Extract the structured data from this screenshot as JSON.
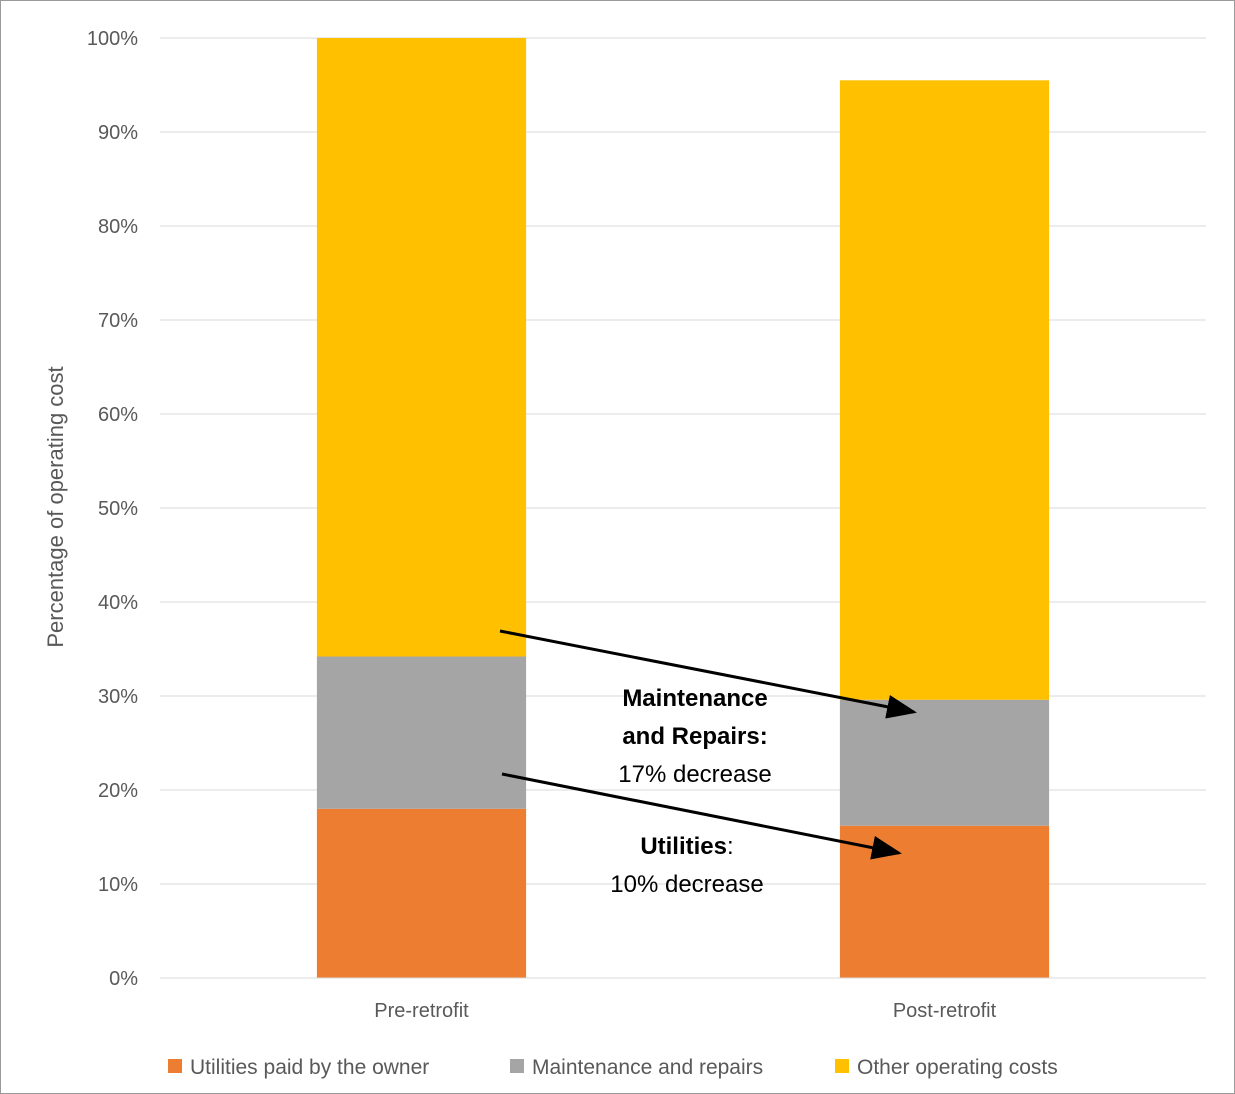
{
  "chart_data": {
    "type": "bar",
    "stacked": true,
    "categories": [
      "Pre-retrofit",
      "Post-retrofit"
    ],
    "series": [
      {
        "name": "Utilities paid by the owner",
        "color": "#ED7D31",
        "values": [
          18,
          16.2
        ]
      },
      {
        "name": "Maintenance and repairs",
        "color": "#A5A5A5",
        "values": [
          16.2,
          13.4
        ]
      },
      {
        "name": "Other operating costs",
        "color": "#FFC000",
        "values": [
          65.8,
          65.9
        ]
      }
    ],
    "ylabel": "Percentage of operating cost",
    "xlabel": "",
    "ylim": [
      0,
      100
    ],
    "yticks": [
      "0%",
      "10%",
      "20%",
      "30%",
      "40%",
      "50%",
      "60%",
      "70%",
      "80%",
      "90%",
      "100%"
    ],
    "grid": true,
    "legend_position": "bottom",
    "annotations": [
      {
        "bold": "Maintenance",
        "line2_bold": "and Repairs:",
        "line3": "17% decrease"
      },
      {
        "bold": "Utilities",
        "suffix": ":",
        "line2": "10% decrease"
      }
    ]
  }
}
